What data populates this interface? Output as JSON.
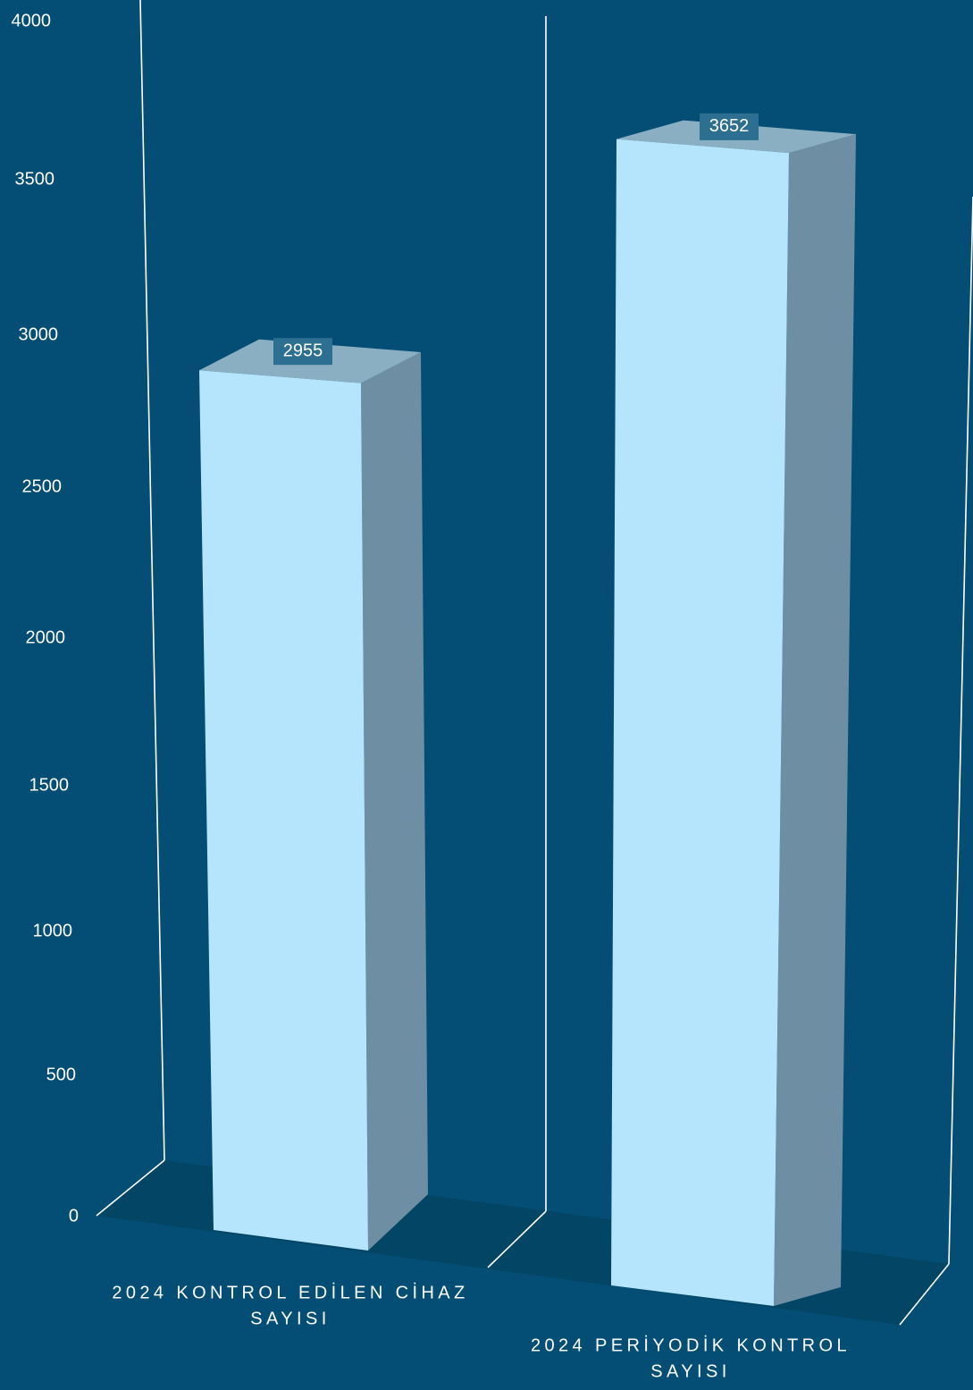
{
  "chart_data": {
    "type": "bar",
    "title": "",
    "xlabel": "",
    "ylabel": "",
    "ylim": [
      0,
      4000
    ],
    "yticks": [
      0,
      500,
      1000,
      1500,
      2000,
      2500,
      3000,
      3500,
      4000
    ],
    "categories": [
      [
        "2024 KONTROL EDİLEN CİHAZ",
        "SAYISI"
      ],
      [
        "2024 PERİYODİK KONTROL",
        "SAYISI"
      ]
    ],
    "values": [
      2955,
      3652
    ],
    "data_labels": [
      "2955",
      "3652"
    ],
    "grid": false,
    "legend": "none",
    "style": "3d-column"
  },
  "colors": {
    "background": "#044e75",
    "floor": "#034565",
    "bar_front": "#b4e5fc",
    "bar_side": "#6e8fa3",
    "bar_top": "#8aaec2",
    "label_box": "#2d6f90",
    "axis_line": "#ffffff",
    "text": "#ffffff"
  }
}
